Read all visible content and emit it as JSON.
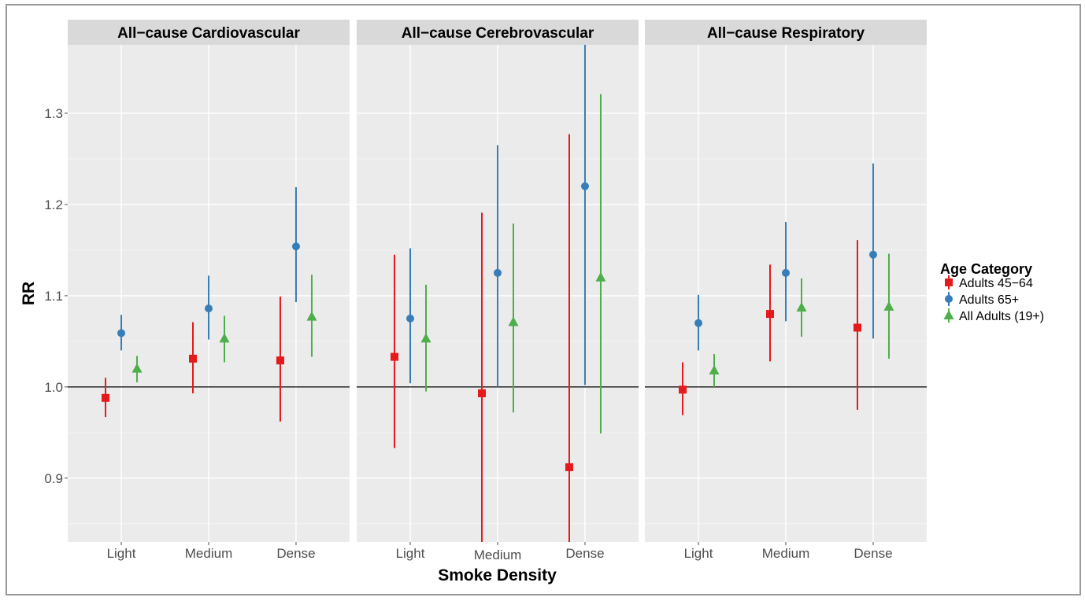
{
  "chart_data": {
    "type": "scatter",
    "subtype": "point-range (estimate with confidence interval), faceted",
    "xlabel": "Smoke Density",
    "ylabel": "RR",
    "categories": [
      "Light",
      "Medium",
      "Dense"
    ],
    "ylim": [
      0.83,
      1.375
    ],
    "yticks": [
      0.9,
      1.0,
      1.1,
      1.2,
      1.3
    ],
    "ytick_labels": [
      "0.9",
      "1.0",
      "1.1",
      "1.2",
      "1.3"
    ],
    "reference_line": 1.0,
    "grid": true,
    "legend": {
      "title": "Age Category",
      "position": "right",
      "entries": [
        {
          "label": "Adults 45−64",
          "color": "#e41a1c",
          "shape": "square"
        },
        {
          "label": "Adults 65+",
          "color": "#377eb8",
          "shape": "circle"
        },
        {
          "label": "All Adults (19+)",
          "color": "#4daf4a",
          "shape": "triangle"
        }
      ]
    },
    "facets": [
      {
        "title": "All−cause Cardiovascular",
        "series": [
          {
            "name": "Adults 45−64",
            "estimate": [
              0.988,
              1.031,
              1.029
            ],
            "lower": [
              0.967,
              0.993,
              0.962
            ],
            "upper": [
              1.01,
              1.071,
              1.099
            ]
          },
          {
            "name": "Adults 65+",
            "estimate": [
              1.059,
              1.086,
              1.154
            ],
            "lower": [
              1.04,
              1.052,
              1.093
            ],
            "upper": [
              1.079,
              1.122,
              1.219
            ]
          },
          {
            "name": "All Adults (19+)",
            "estimate": [
              1.02,
              1.053,
              1.077
            ],
            "lower": [
              1.005,
              1.027,
              1.033
            ],
            "upper": [
              1.034,
              1.078,
              1.123
            ]
          }
        ]
      },
      {
        "title": "All−cause Cerebrovascular",
        "series": [
          {
            "name": "Adults 45−64",
            "estimate": [
              1.033,
              0.993,
              0.912
            ],
            "lower": [
              0.933,
              0.83,
              0.83
            ],
            "upper": [
              1.145,
              1.191,
              1.277
            ]
          },
          {
            "name": "Adults 65+",
            "estimate": [
              1.075,
              1.125,
              1.22
            ],
            "lower": [
              1.004,
              1.0,
              1.002
            ],
            "upper": [
              1.152,
              1.265,
              1.375
            ]
          },
          {
            "name": "All Adults (19+)",
            "estimate": [
              1.053,
              1.071,
              1.12
            ],
            "lower": [
              0.995,
              0.972,
              0.949
            ],
            "upper": [
              1.112,
              1.179,
              1.321
            ]
          }
        ]
      },
      {
        "title": "All−cause Respiratory",
        "series": [
          {
            "name": "Adults 45−64",
            "estimate": [
              0.997,
              1.08,
              1.065
            ],
            "lower": [
              0.969,
              1.028,
              0.975
            ],
            "upper": [
              1.027,
              1.134,
              1.161
            ]
          },
          {
            "name": "Adults 65+",
            "estimate": [
              1.07,
              1.125,
              1.145
            ],
            "lower": [
              1.04,
              1.072,
              1.053
            ],
            "upper": [
              1.101,
              1.181,
              1.245
            ]
          },
          {
            "name": "All Adults (19+)",
            "estimate": [
              1.018,
              1.087,
              1.088
            ],
            "lower": [
              1.0,
              1.055,
              1.031
            ],
            "upper": [
              1.036,
              1.119,
              1.146
            ]
          }
        ]
      }
    ]
  }
}
